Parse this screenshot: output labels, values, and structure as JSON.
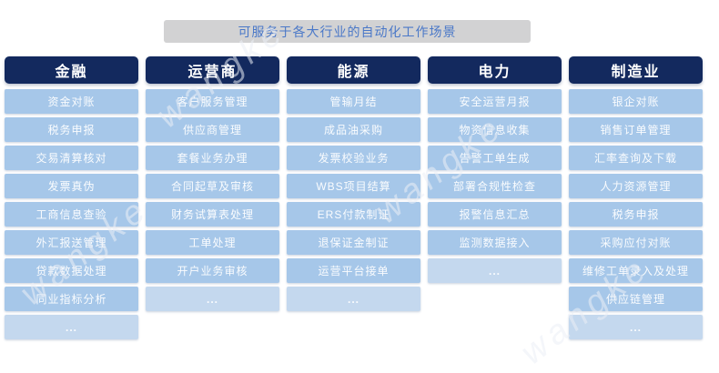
{
  "title": "可服务于各大行业的自动化工作场景",
  "watermark": "wangke",
  "colors": {
    "header_bg": "#13295e",
    "item_bg": "#a6c7e9",
    "ellipsis_bg": "#c4d8ee",
    "title_bg": "#d2d2d3",
    "title_text": "#4a78c8"
  },
  "columns": [
    {
      "header": "金融",
      "items": [
        "资金对账",
        "税务申报",
        "交易清算核对",
        "发票真伪",
        "工商信息查验",
        "外汇报送管理",
        "贷款数据处理",
        "同业指标分析",
        "..."
      ]
    },
    {
      "header": "运营商",
      "items": [
        "客户服务管理",
        "供应商管理",
        "套餐业务办理",
        "合同起草及审核",
        "财务试算表处理",
        "工单处理",
        "开户业务审核",
        "..."
      ]
    },
    {
      "header": "能源",
      "items": [
        "管输月结",
        "成品油采购",
        "发票校验业务",
        "WBS项目结算",
        "ERS付款制证",
        "退保证金制证",
        "运营平台接单",
        "..."
      ]
    },
    {
      "header": "电力",
      "items": [
        "安全运营月报",
        "物资信息收集",
        "告警工单生成",
        "部署合规性检查",
        "报警信息汇总",
        "监测数据接入",
        "..."
      ]
    },
    {
      "header": "制造业",
      "items": [
        "银企对账",
        "销售订单管理",
        "汇率查询及下载",
        "人力资源管理",
        "税务申报",
        "采购应付对账",
        "维修工单录入及处理",
        "供应链管理",
        "..."
      ]
    }
  ]
}
